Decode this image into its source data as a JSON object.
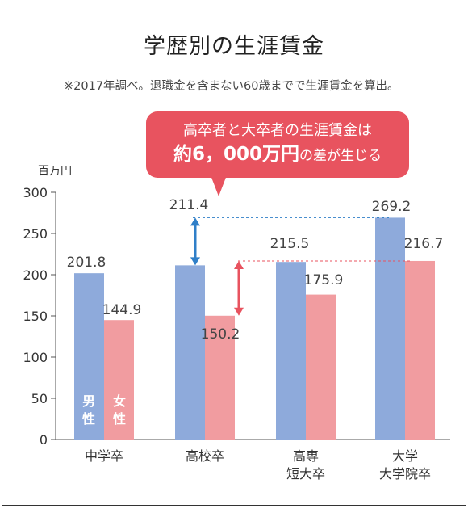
{
  "title": "学歴別の生涯賃金",
  "note": "※2017年調べ。退職金を含まない60歳までで生涯賃金を算出。",
  "callout": {
    "line1": "高卒者と大卒者の生涯賃金は",
    "line2_strong": "約6，000万円",
    "line2_rest": "の差が生じる"
  },
  "colors": {
    "male": "#8eaadb",
    "female": "#f19ca0",
    "accent": "#e8535f",
    "arrow_blue": "#2f7fc8"
  },
  "chart_data": {
    "type": "bar",
    "ylabel": "百万円",
    "ylim": [
      0,
      300
    ],
    "yticks": [
      0,
      50,
      100,
      150,
      200,
      250,
      300
    ],
    "categories": [
      [
        "中学卒"
      ],
      [
        "高校卒"
      ],
      [
        "高専",
        "短大卒"
      ],
      [
        "大学",
        "大学院卒"
      ]
    ],
    "series": [
      {
        "name": "男性",
        "values": [
          201.8,
          211.4,
          215.5,
          269.2
        ]
      },
      {
        "name": "女性",
        "values": [
          144.9,
          150.2,
          175.9,
          216.7
        ]
      }
    ],
    "in_bar_labels": [
      "男",
      "性",
      "女",
      "性"
    ],
    "grid": false
  }
}
